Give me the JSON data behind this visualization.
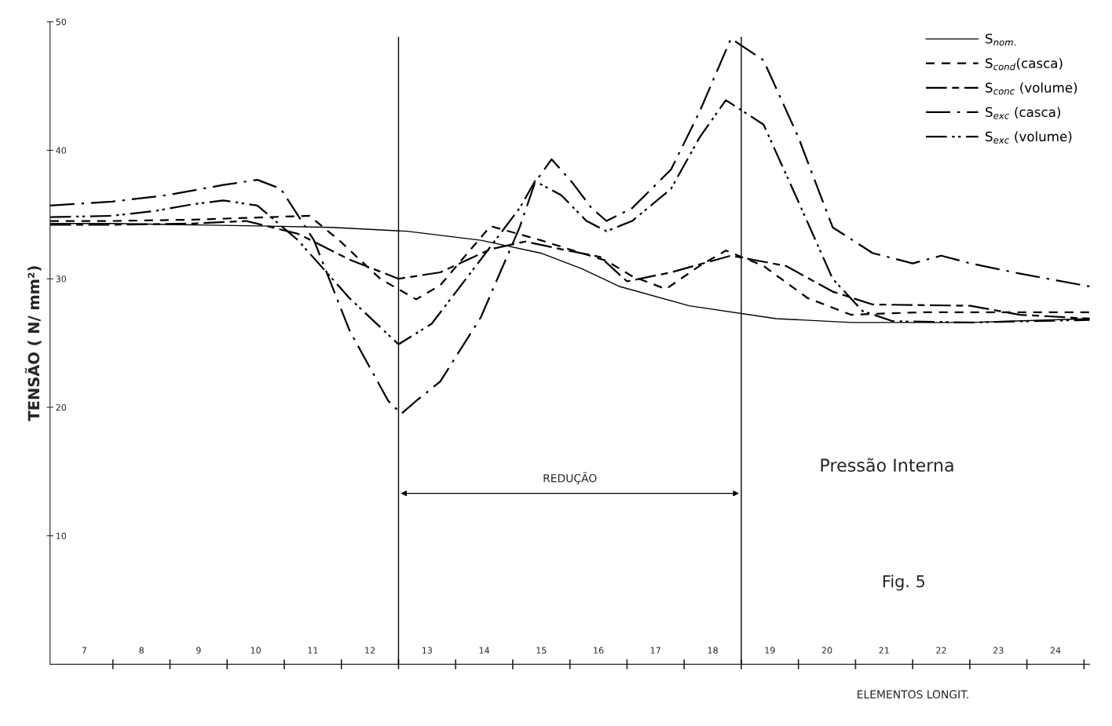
{
  "chart_data": {
    "type": "line",
    "xlabel": "ELEMENTOS LONGIT.",
    "ylabel": "TENSÃO ( N/ mm²)",
    "xlim": [
      6.4,
      24.6
    ],
    "ylim": [
      0,
      50
    ],
    "yticks": [
      10,
      20,
      30,
      40,
      50
    ],
    "xticks": [
      7,
      {
        "value": 7.5,
        "label": null
      },
      8,
      {
        "value": 8.5,
        "label": null
      },
      9,
      {
        "value": 9.5,
        "label": null
      },
      10,
      {
        "value": 10.5,
        "label": null
      },
      11,
      {
        "value": 11.5,
        "label": null
      },
      12,
      {
        "value": 12.5,
        "label": null
      },
      13,
      {
        "value": 13.5,
        "label": null
      },
      14,
      {
        "value": 14.5,
        "label": null
      },
      15,
      {
        "value": 15.5,
        "label": null
      },
      16,
      {
        "value": 16.5,
        "label": null
      },
      17,
      {
        "value": 17.5,
        "label": null
      },
      18,
      {
        "value": 18.5,
        "label": null
      },
      19,
      {
        "value": 19.5,
        "label": null
      },
      20,
      {
        "value": 20.5,
        "label": null
      },
      21,
      {
        "value": 21.5,
        "label": null
      },
      22,
      {
        "value": 22.5,
        "label": null
      },
      23,
      {
        "value": 23.5,
        "label": null
      },
      24,
      {
        "value": 24.5,
        "label": null
      }
    ],
    "grid": false,
    "legend": "top right",
    "marker": "none",
    "series": [
      {
        "name": "S$_{nom.}$",
        "color": "#000000",
        "line_style": "solid",
        "x": [
          6.4,
          7.48,
          8.9,
          10.25,
          11.34,
          12.65,
          13.94,
          14.99,
          15.7,
          16.37,
          17.59,
          19.11,
          20.42,
          22.51,
          24.6
        ],
        "values": [
          34.3,
          34.3,
          34.2,
          34.1,
          34.0,
          33.7,
          33.0,
          32.0,
          30.8,
          29.4,
          27.9,
          26.9,
          26.6,
          26.6,
          26.9
        ]
      },
      {
        "name": "S$_{cond}$(casca)",
        "color": "#000000",
        "line_style": "dashed",
        "x": [
          6.4,
          7.48,
          8.9,
          10.25,
          10.94,
          11.46,
          12.18,
          12.81,
          13.23,
          14.11,
          14.99,
          15.7,
          16.14,
          16.59,
          17.18,
          17.77,
          18.23,
          18.89,
          19.66,
          20.42,
          21.66,
          24.6
        ],
        "values": [
          34.5,
          34.5,
          34.6,
          34.8,
          34.9,
          33,
          30,
          28.4,
          29.5,
          34.1,
          33,
          32,
          31.4,
          30.2,
          29.2,
          31,
          32.2,
          31,
          28.5,
          27.2,
          27.4,
          27.4
        ]
      },
      {
        "name": "S$_{conc}$ (volume)",
        "color": "#000000",
        "line_style": "longdashdash",
        "x": [
          6.4,
          7.48,
          8.9,
          9.83,
          10.74,
          11.64,
          12.5,
          13.23,
          14.11,
          14.72,
          15.35,
          16.03,
          16.5,
          17.27,
          18.32,
          19.28,
          20.1,
          20.8,
          22.51,
          23.38,
          24.6
        ],
        "values": [
          34.2,
          34.2,
          34.3,
          34.5,
          33.5,
          31.5,
          30.0,
          30.5,
          32.3,
          32.9,
          32.3,
          31.7,
          29.8,
          30.5,
          31.8,
          31.0,
          29.0,
          28.0,
          27.9,
          27.2,
          26.9
        ]
      },
      {
        "name": "S$_{exc}$ (casca)",
        "color": "#000000",
        "line_style": "dashdot",
        "x": [
          6.4,
          7.48,
          8.43,
          9.43,
          10.03,
          10.44,
          11.02,
          11.64,
          12.32,
          12.55,
          12.81,
          13.23,
          13.94,
          14.62,
          14.89,
          15.18,
          15.54,
          15.88,
          16.14,
          16.59,
          17.27,
          17.77,
          18.32,
          18.89,
          19.5,
          20.1,
          20.8,
          21.5,
          22.0,
          22.51,
          23.38,
          24.6
        ],
        "values": [
          35.7,
          36.0,
          36.5,
          37.3,
          37.7,
          37.0,
          33,
          26,
          20.5,
          19.5,
          20.5,
          22,
          27,
          34,
          37.5,
          39.3,
          37.5,
          35.5,
          34.5,
          35.5,
          38.5,
          43,
          48.7,
          47,
          41,
          34,
          32,
          31.2,
          31.8,
          31.2,
          30.4,
          29.4
        ]
      },
      {
        "name": "S$_{exc}$ (volume)",
        "color": "#000000",
        "line_style": "dashdotdot",
        "x": [
          6.4,
          7.48,
          8.27,
          8.9,
          9.43,
          10.03,
          10.74,
          11.64,
          12.5,
          13.08,
          13.94,
          14.62,
          14.89,
          15.35,
          15.79,
          16.14,
          16.59,
          17.27,
          17.77,
          18.23,
          18.89,
          19.5,
          20.1,
          20.62,
          21.15,
          22.51,
          24.6
        ],
        "values": [
          34.8,
          34.9,
          35.3,
          35.8,
          36.1,
          35.7,
          33,
          28.5,
          24.9,
          26.5,
          31.5,
          35.5,
          37.6,
          36.5,
          34.5,
          33.7,
          34.5,
          37,
          41,
          43.9,
          42,
          36,
          30,
          27.5,
          26.7,
          26.6,
          26.8
        ]
      }
    ],
    "ref_lines": [
      {
        "axis": "x",
        "value": 12.5,
        "color": "#000000"
      },
      {
        "axis": "x",
        "value": 18.5,
        "color": "#000000"
      }
    ],
    "annotations": [
      "REDUÇÃO",
      "Pressão Interna",
      "Fig. 5"
    ]
  }
}
